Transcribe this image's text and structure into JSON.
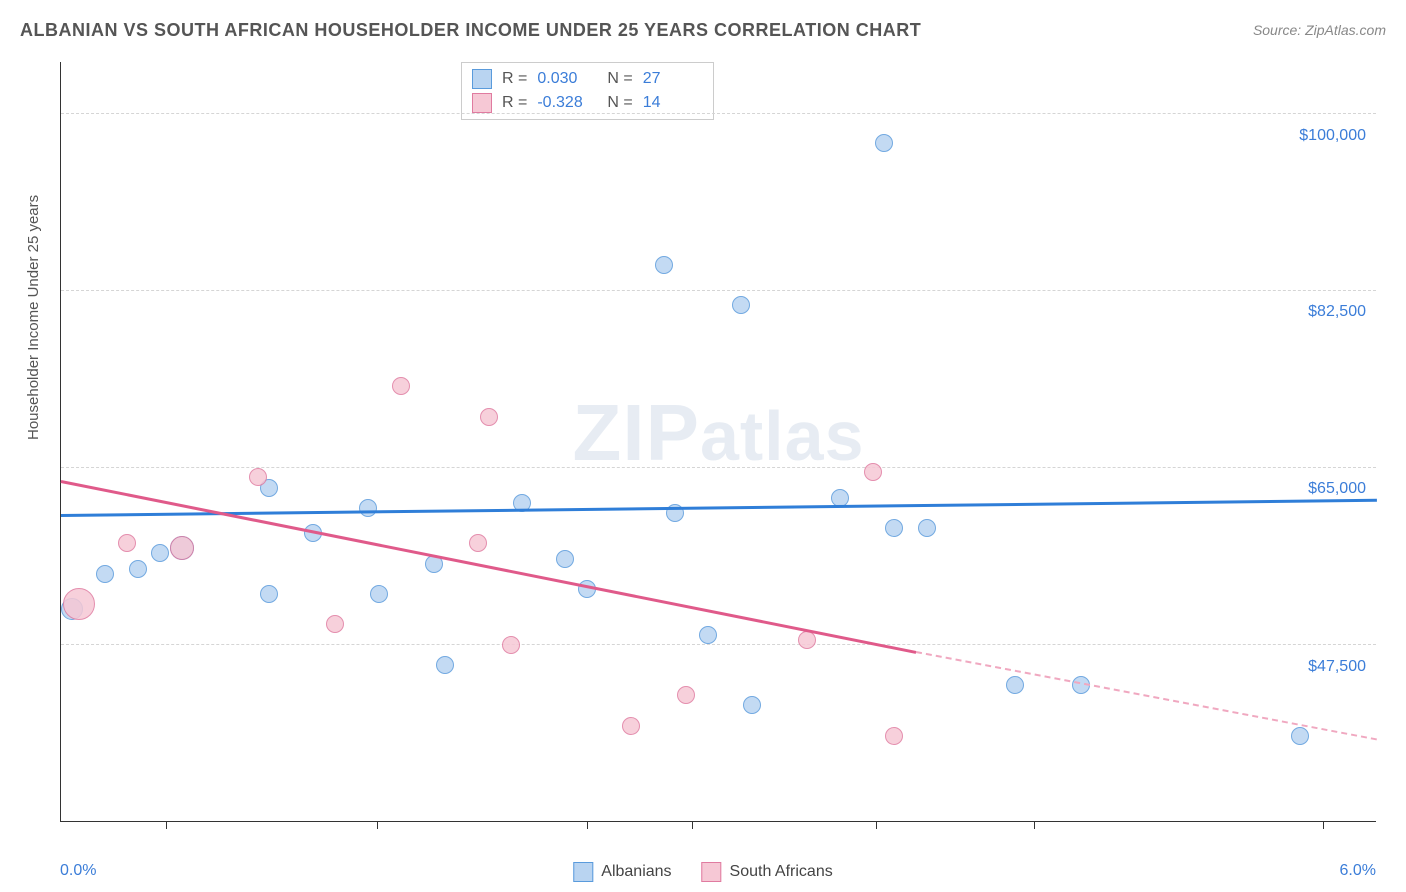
{
  "title": "ALBANIAN VS SOUTH AFRICAN HOUSEHOLDER INCOME UNDER 25 YEARS CORRELATION CHART",
  "source": "Source: ZipAtlas.com",
  "watermark_zip": "ZIP",
  "watermark_rest": "atlas",
  "chart": {
    "type": "scatter-correlation",
    "background_color": "#ffffff",
    "grid_color": "#d5d5d5",
    "axis_color": "#333333",
    "value_label_color": "#3b7dd8",
    "x_axis": {
      "min": 0.0,
      "max": 6.0,
      "label_min": "0.0%",
      "label_max": "6.0%",
      "tick_positions_pct": [
        8,
        24,
        40,
        48,
        62,
        74,
        96
      ]
    },
    "y_axis": {
      "title": "Householder Income Under 25 years",
      "min": 30000,
      "max": 105000,
      "gridlines": [
        {
          "value": 100000,
          "label": "$100,000",
          "pos_pct": 6.7
        },
        {
          "value": 82500,
          "label": "$82,500",
          "pos_pct": 30.0
        },
        {
          "value": 65000,
          "label": "$65,000",
          "pos_pct": 53.3
        },
        {
          "value": 47500,
          "label": "$47,500",
          "pos_pct": 76.7
        }
      ]
    },
    "legend": [
      {
        "label": "Albanians",
        "fill": "#b9d4f1",
        "stroke": "#5a9bdc"
      },
      {
        "label": "South Africans",
        "fill": "#f6c8d5",
        "stroke": "#e07ba0"
      }
    ],
    "stats": [
      {
        "series": 0,
        "r_label": "R =",
        "r": "0.030",
        "n_label": "N =",
        "n": "27"
      },
      {
        "series": 1,
        "r_label": "R =",
        "r": "-0.328",
        "n_label": "N =",
        "n": "14"
      }
    ],
    "trendlines": [
      {
        "series": 0,
        "color": "#2f7ed8",
        "x1_pct": 0,
        "y1_pct": 59.5,
        "x2_pct": 100,
        "y2_pct": 57.5,
        "solid": true
      },
      {
        "series": 1,
        "color": "#e05a8a",
        "x1_pct": 0,
        "y1_pct": 55.0,
        "x2_pct": 65,
        "y2_pct": 77.5,
        "solid": true
      },
      {
        "series": 1,
        "color": "#f0a8c0",
        "x1_pct": 65,
        "y1_pct": 77.5,
        "x2_pct": 100,
        "y2_pct": 89.0,
        "solid": false
      }
    ],
    "points": [
      {
        "s": 0,
        "x": 0.05,
        "y": 51000,
        "r": 11
      },
      {
        "s": 0,
        "x": 0.2,
        "y": 54500,
        "r": 9
      },
      {
        "s": 0,
        "x": 0.35,
        "y": 55000,
        "r": 9
      },
      {
        "s": 0,
        "x": 0.45,
        "y": 56500,
        "r": 9
      },
      {
        "s": 0,
        "x": 0.55,
        "y": 57000,
        "r": 12
      },
      {
        "s": 0,
        "x": 0.95,
        "y": 52500,
        "r": 9
      },
      {
        "s": 0,
        "x": 0.95,
        "y": 63000,
        "r": 9
      },
      {
        "s": 0,
        "x": 1.15,
        "y": 58500,
        "r": 9
      },
      {
        "s": 0,
        "x": 1.4,
        "y": 61000,
        "r": 9
      },
      {
        "s": 0,
        "x": 1.45,
        "y": 52500,
        "r": 9
      },
      {
        "s": 0,
        "x": 1.7,
        "y": 55500,
        "r": 9
      },
      {
        "s": 0,
        "x": 1.75,
        "y": 45500,
        "r": 9
      },
      {
        "s": 0,
        "x": 2.1,
        "y": 61500,
        "r": 9
      },
      {
        "s": 0,
        "x": 2.3,
        "y": 56000,
        "r": 9
      },
      {
        "s": 0,
        "x": 2.4,
        "y": 53000,
        "r": 9
      },
      {
        "s": 0,
        "x": 2.75,
        "y": 85000,
        "r": 9
      },
      {
        "s": 0,
        "x": 2.8,
        "y": 60500,
        "r": 9
      },
      {
        "s": 0,
        "x": 2.95,
        "y": 48500,
        "r": 9
      },
      {
        "s": 0,
        "x": 3.1,
        "y": 81000,
        "r": 9
      },
      {
        "s": 0,
        "x": 3.15,
        "y": 41500,
        "r": 9
      },
      {
        "s": 0,
        "x": 3.55,
        "y": 62000,
        "r": 9
      },
      {
        "s": 0,
        "x": 3.75,
        "y": 97000,
        "r": 9
      },
      {
        "s": 0,
        "x": 3.8,
        "y": 59000,
        "r": 9
      },
      {
        "s": 0,
        "x": 3.95,
        "y": 59000,
        "r": 9
      },
      {
        "s": 0,
        "x": 4.35,
        "y": 43500,
        "r": 9
      },
      {
        "s": 0,
        "x": 4.65,
        "y": 43500,
        "r": 9
      },
      {
        "s": 0,
        "x": 5.65,
        "y": 38500,
        "r": 9
      },
      {
        "s": 1,
        "x": 0.08,
        "y": 51500,
        "r": 16
      },
      {
        "s": 1,
        "x": 0.3,
        "y": 57500,
        "r": 9
      },
      {
        "s": 1,
        "x": 0.55,
        "y": 57000,
        "r": 12
      },
      {
        "s": 1,
        "x": 0.9,
        "y": 64000,
        "r": 9
      },
      {
        "s": 1,
        "x": 1.25,
        "y": 49500,
        "r": 9
      },
      {
        "s": 1,
        "x": 1.55,
        "y": 73000,
        "r": 9
      },
      {
        "s": 1,
        "x": 1.9,
        "y": 57500,
        "r": 9
      },
      {
        "s": 1,
        "x": 1.95,
        "y": 70000,
        "r": 9
      },
      {
        "s": 1,
        "x": 2.05,
        "y": 47500,
        "r": 9
      },
      {
        "s": 1,
        "x": 2.6,
        "y": 39500,
        "r": 9
      },
      {
        "s": 1,
        "x": 2.85,
        "y": 42500,
        "r": 9
      },
      {
        "s": 1,
        "x": 3.4,
        "y": 48000,
        "r": 9
      },
      {
        "s": 1,
        "x": 3.7,
        "y": 64500,
        "r": 9
      },
      {
        "s": 1,
        "x": 3.8,
        "y": 38500,
        "r": 9
      }
    ]
  }
}
